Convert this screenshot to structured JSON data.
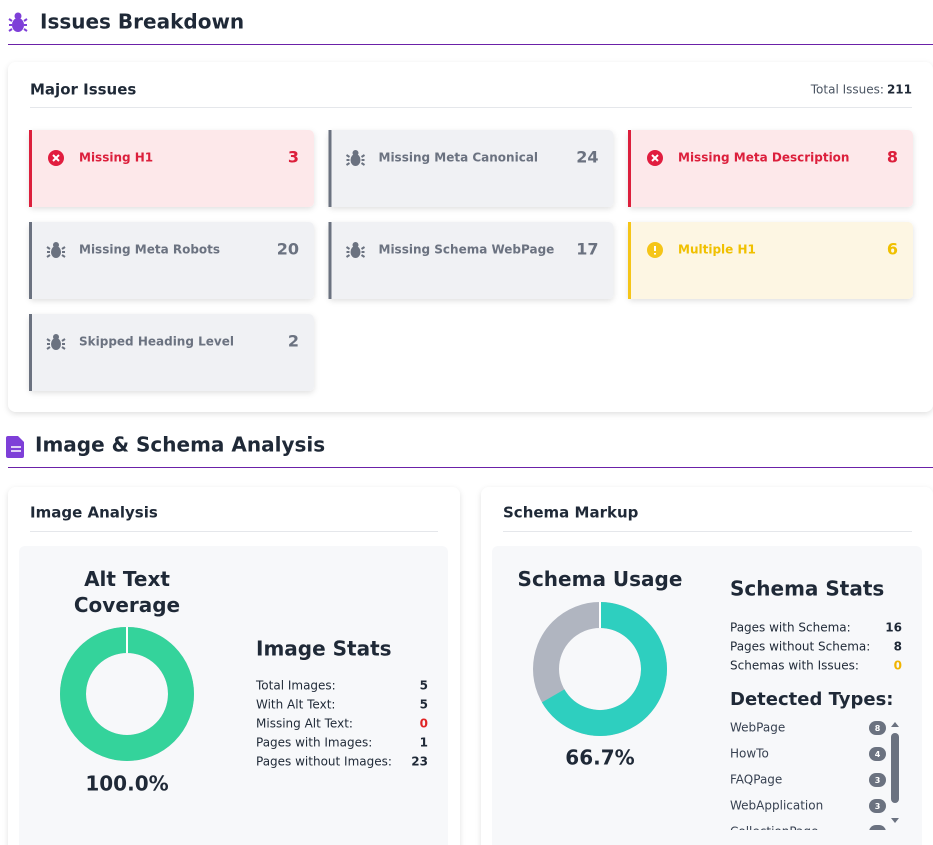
{
  "header": {
    "title": "Issues Breakdown"
  },
  "major_issues": {
    "title": "Major Issues",
    "total_label": "Total Issues:",
    "total": 211,
    "items": [
      {
        "label": "Missing H1",
        "count": 3,
        "severity": "error"
      },
      {
        "label": "Missing Meta Canonical",
        "count": 24,
        "severity": "info"
      },
      {
        "label": "Missing Meta Description",
        "count": 8,
        "severity": "error"
      },
      {
        "label": "Missing Meta Robots",
        "count": 20,
        "severity": "info"
      },
      {
        "label": "Missing Schema WebPage",
        "count": 17,
        "severity": "info"
      },
      {
        "label": "Multiple H1",
        "count": 6,
        "severity": "warning"
      },
      {
        "label": "Skipped Heading Level",
        "count": 2,
        "severity": "info"
      }
    ]
  },
  "analysis": {
    "title": "Image & Schema Analysis",
    "image": {
      "title": "Image Analysis",
      "chart_data": {
        "type": "donut",
        "title": "Alt Text Coverage",
        "value": 100,
        "value_label": "100.0%",
        "color": "#34d39b",
        "track_color": "#b0b5c0"
      },
      "stats_title": "Image Stats",
      "stats": [
        {
          "label": "Total Images:",
          "value": 5
        },
        {
          "label": "With Alt Text:",
          "value": 5
        },
        {
          "label": "Missing Alt Text:",
          "value": 0,
          "color": "#e02424"
        },
        {
          "label": "Pages with Images:",
          "value": 1
        },
        {
          "label": "Pages without Images:",
          "value": 23
        }
      ]
    },
    "schema": {
      "title": "Schema Markup",
      "chart_data": {
        "type": "donut",
        "title": "Schema Usage",
        "value": 66.7,
        "value_label": "66.7%",
        "color": "#2ecfbf",
        "track_color": "#b0b5c0"
      },
      "stats_title": "Schema Stats",
      "stats": [
        {
          "label": "Pages with Schema:",
          "value": 16
        },
        {
          "label": "Pages without Schema:",
          "value": 8
        },
        {
          "label": "Schemas with Issues:",
          "value": 0,
          "color": "#f0b400"
        }
      ],
      "types_title": "Detected Types:",
      "types": [
        {
          "label": "WebPage",
          "count": 8
        },
        {
          "label": "HowTo",
          "count": 4
        },
        {
          "label": "FAQPage",
          "count": 3
        },
        {
          "label": "WebApplication",
          "count": 3
        },
        {
          "label": "CollectionPage"
        }
      ]
    }
  }
}
